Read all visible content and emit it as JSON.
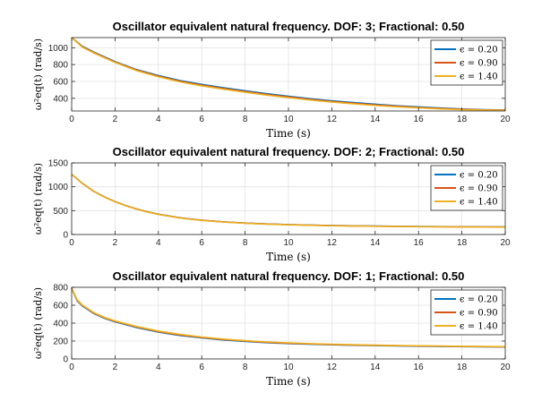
{
  "chart_data": [
    {
      "type": "line",
      "title": "Oscillator equivalent natural frequency. DOF: 3; Fractional: 0.50",
      "xlabel": "Time (s)",
      "ylabel": "ω²eq(t) (rad/s)",
      "xlim": [
        0,
        20
      ],
      "ylim": [
        250,
        1120
      ],
      "xticks": [
        0,
        2,
        4,
        6,
        8,
        10,
        12,
        14,
        16,
        18,
        20
      ],
      "yticks": [
        400,
        600,
        800,
        1000
      ],
      "grid": true,
      "legend_position": "top-right",
      "x": [
        0,
        0.5,
        1,
        2,
        3,
        4,
        5,
        6,
        7,
        8,
        9,
        10,
        11,
        12,
        13,
        14,
        15,
        16,
        17,
        18,
        19,
        20
      ],
      "series": [
        {
          "name": "ϵ = 0.20",
          "color": "#0072BD",
          "values": [
            1120,
            1015,
            950,
            835,
            740,
            670,
            610,
            565,
            525,
            490,
            455,
            425,
            395,
            370,
            350,
            330,
            312,
            298,
            285,
            274,
            266,
            262
          ]
        },
        {
          "name": "ϵ = 0.90",
          "color": "#D95319",
          "values": [
            1120,
            1010,
            945,
            830,
            735,
            662,
            602,
            556,
            516,
            480,
            446,
            416,
            388,
            362,
            342,
            322,
            306,
            292,
            280,
            270,
            263,
            260
          ]
        },
        {
          "name": "ϵ = 1.40",
          "color": "#EDB120",
          "values": [
            1120,
            1005,
            940,
            825,
            728,
            655,
            595,
            548,
            508,
            472,
            438,
            408,
            380,
            355,
            335,
            316,
            300,
            287,
            275,
            266,
            260,
            258
          ]
        }
      ]
    },
    {
      "type": "line",
      "title": "Oscillator equivalent natural frequency. DOF: 2; Fractional: 0.50",
      "xlabel": "Time (s)",
      "ylabel": "ω²eq(t) (rad/s)",
      "xlim": [
        0,
        20
      ],
      "ylim": [
        0,
        1500
      ],
      "xticks": [
        0,
        2,
        4,
        6,
        8,
        10,
        12,
        14,
        16,
        18,
        20
      ],
      "yticks": [
        0,
        500,
        1000,
        1500
      ],
      "grid": true,
      "legend_position": "top-right",
      "x": [
        0,
        0.5,
        1,
        1.5,
        2,
        2.5,
        3,
        3.5,
        4,
        5,
        6,
        7,
        8,
        9,
        10,
        11,
        12,
        13,
        14,
        15,
        16,
        17,
        18,
        19,
        20
      ],
      "series": [
        {
          "name": "ϵ = 0.20",
          "color": "#0072BD",
          "values": [
            1260,
            1070,
            910,
            790,
            690,
            605,
            535,
            475,
            425,
            350,
            300,
            265,
            240,
            222,
            208,
            197,
            188,
            182,
            176,
            172,
            168,
            165,
            162,
            160,
            158
          ]
        },
        {
          "name": "ϵ = 0.90",
          "color": "#D95319",
          "values": [
            1260,
            1068,
            908,
            788,
            688,
            603,
            533,
            473,
            423,
            348,
            298,
            263,
            238,
            220,
            206,
            195,
            186,
            180,
            174,
            170,
            166,
            163,
            160,
            158,
            156
          ]
        },
        {
          "name": "ϵ = 1.40",
          "color": "#EDB120",
          "values": [
            1260,
            1065,
            905,
            785,
            685,
            600,
            530,
            470,
            420,
            345,
            295,
            260,
            235,
            217,
            203,
            192,
            183,
            177,
            171,
            167,
            163,
            160,
            157,
            155,
            153
          ]
        }
      ]
    },
    {
      "type": "line",
      "title": "Oscillator equivalent natural frequency. DOF: 1; Fractional: 0.50",
      "xlabel": "Time (s)",
      "ylabel": "ω²eq(t) (rad/s)",
      "xlim": [
        0,
        20
      ],
      "ylim": [
        0,
        800
      ],
      "xticks": [
        0,
        2,
        4,
        6,
        8,
        10,
        12,
        14,
        16,
        18,
        20
      ],
      "yticks": [
        0,
        200,
        400,
        600,
        800
      ],
      "grid": true,
      "legend_position": "top-right",
      "x": [
        0,
        0.25,
        0.5,
        1,
        1.5,
        2,
        3,
        4,
        5,
        6,
        7,
        8,
        9,
        10,
        11,
        12,
        13,
        14,
        15,
        16,
        17,
        18,
        19,
        20
      ],
      "series": [
        {
          "name": "ϵ = 0.20",
          "color": "#0072BD",
          "values": [
            790,
            650,
            590,
            510,
            455,
            415,
            350,
            300,
            262,
            235,
            212,
            195,
            182,
            172,
            164,
            158,
            153,
            149,
            145,
            142,
            139,
            137,
            135,
            133
          ]
        },
        {
          "name": "ϵ = 0.90",
          "color": "#D95319",
          "values": [
            790,
            655,
            595,
            515,
            460,
            420,
            356,
            306,
            268,
            240,
            217,
            200,
            186,
            176,
            168,
            161,
            156,
            152,
            148,
            145,
            142,
            139,
            137,
            135
          ]
        },
        {
          "name": "ϵ = 1.40",
          "color": "#EDB120",
          "values": [
            790,
            660,
            600,
            520,
            465,
            425,
            362,
            312,
            274,
            245,
            222,
            204,
            190,
            180,
            171,
            164,
            159,
            154,
            150,
            147,
            144,
            141,
            139,
            137
          ]
        }
      ]
    }
  ]
}
